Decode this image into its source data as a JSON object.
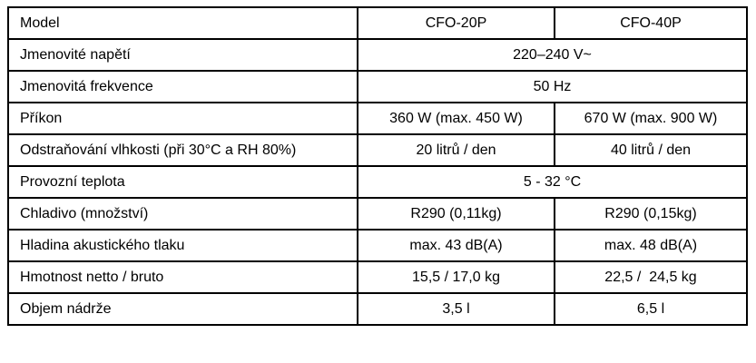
{
  "table": {
    "header": {
      "model_label": "Model",
      "model_1": "CFO-20P",
      "model_2": "CFO-40P"
    },
    "rows": {
      "voltage": {
        "label": "Jmenovité napětí",
        "value": "220–240 V~"
      },
      "frequency": {
        "label": "Jmenovitá frekvence",
        "value": "50 Hz"
      },
      "power": {
        "label": "Příkon",
        "cfo20": "360 W (max. 450 W)",
        "cfo40": "670 W (max. 900 W)"
      },
      "dehumidification": {
        "label": "Odstraňování vlhkosti (při 30°C a RH 80%)",
        "cfo20": "20 litrů / den",
        "cfo40": "40 litrů / den"
      },
      "operating_temp": {
        "label": "Provozní teplota",
        "value": "5 - 32 °C"
      },
      "refrigerant": {
        "label": "Chladivo (množství)",
        "cfo20": "R290 (0,11kg)",
        "cfo40": "R290 (0,15kg)"
      },
      "sound_pressure": {
        "label": "Hladina akustického tlaku",
        "cfo20": "max. 43 dB(A)",
        "cfo40": "max. 48 dB(A)"
      },
      "weight": {
        "label": "Hmotnost netto / bruto",
        "cfo20": "15,5 / 17,0 kg",
        "cfo40": "22,5 /  24,5 kg"
      },
      "tank_volume": {
        "label": "Objem nádrže",
        "cfo20": "3,5 l",
        "cfo40": "6,5 l"
      }
    }
  }
}
